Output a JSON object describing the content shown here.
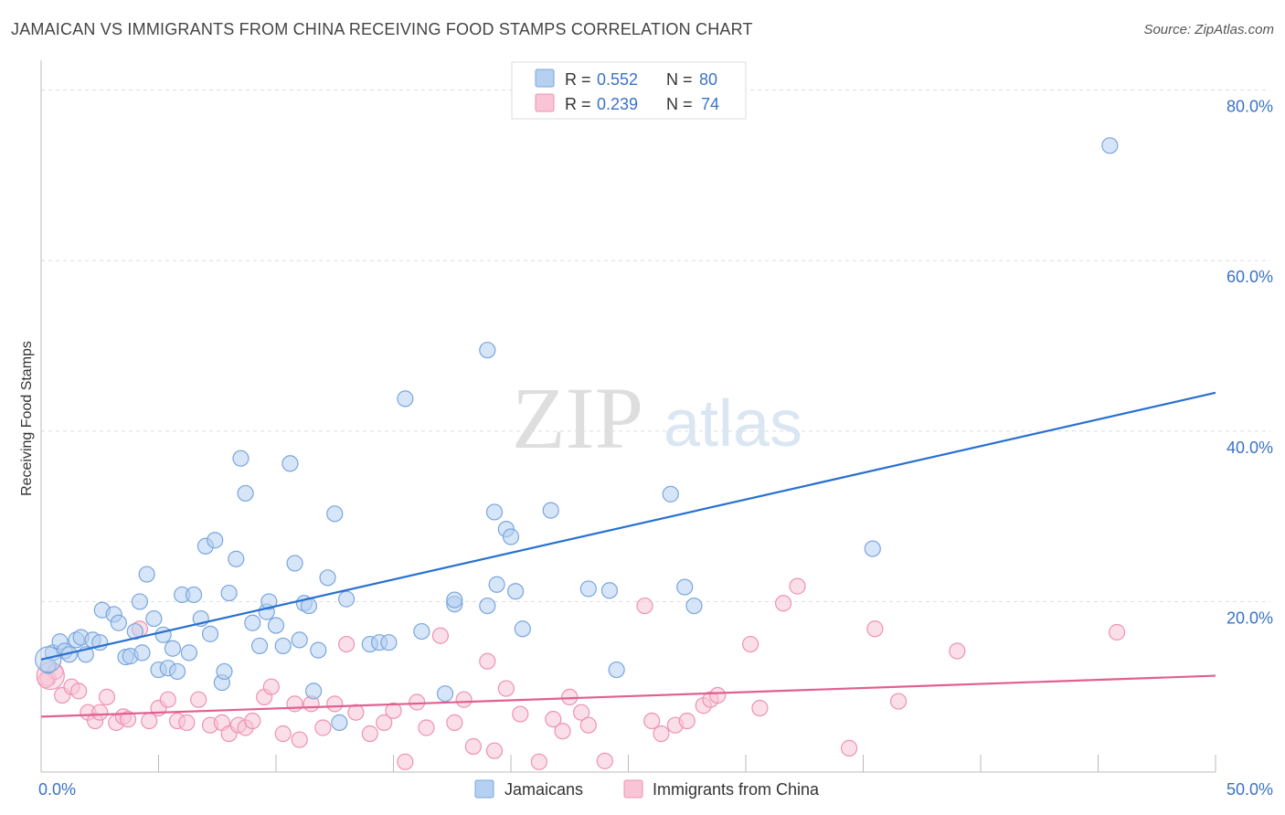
{
  "title": "JAMAICAN VS IMMIGRANTS FROM CHINA RECEIVING FOOD STAMPS CORRELATION CHART",
  "source": "Source: ZipAtlas.com",
  "watermark": {
    "zip": "ZIP",
    "atlas": "atlas"
  },
  "colors": {
    "blue_fill": "#b5d0f0",
    "blue_stroke": "#7aa6dd",
    "blue_line": "#2870d0",
    "pink_fill": "#f8c4d6",
    "pink_stroke": "#ee92b2",
    "pink_line": "#e06090",
    "axis_text": "#3a72c8",
    "grid": "#dddddd"
  },
  "legend": {
    "rows": [
      {
        "r_label": "R =",
        "r_value": "0.552",
        "n_label": "N =",
        "n_value": "80"
      },
      {
        "r_label": "R =",
        "r_value": "0.239",
        "n_label": "N =",
        "n_value": "74"
      }
    ]
  },
  "bottom_legend": [
    "Jamaicans",
    "Immigrants from China"
  ],
  "chart_data": {
    "type": "scatter",
    "title": "JAMAICAN VS IMMIGRANTS FROM CHINA RECEIVING FOOD STAMPS CORRELATION CHART",
    "xlabel": "",
    "ylabel": "Receiving Food Stamps",
    "xlim": [
      0,
      50
    ],
    "ylim": [
      0,
      82
    ],
    "x_tick_labels": [
      "0.0%",
      "50.0%"
    ],
    "y_ticks": [
      20,
      40,
      60,
      80
    ],
    "y_tick_labels": [
      "20.0%",
      "40.0%",
      "60.0%",
      "80.0%"
    ],
    "grid": true,
    "series": [
      {
        "name": "Jamaicans",
        "R": 0.552,
        "N": 80,
        "trend": [
          [
            0,
            13.2
          ],
          [
            50,
            44.5
          ]
        ],
        "points": [
          [
            0.3,
            12.5
          ],
          [
            0.5,
            14
          ],
          [
            0.8,
            15.3
          ],
          [
            1,
            14.2
          ],
          [
            1.2,
            13.8
          ],
          [
            1.5,
            15.5
          ],
          [
            1.7,
            15.8
          ],
          [
            1.9,
            13.8
          ],
          [
            2.2,
            15.5
          ],
          [
            2.5,
            15.2
          ],
          [
            2.6,
            19
          ],
          [
            3.1,
            18.5
          ],
          [
            3.3,
            17.5
          ],
          [
            3.6,
            13.5
          ],
          [
            3.8,
            13.6
          ],
          [
            4,
            16.5
          ],
          [
            4.3,
            14
          ],
          [
            4.2,
            20
          ],
          [
            4.5,
            23.2
          ],
          [
            4.8,
            18
          ],
          [
            5,
            12
          ],
          [
            5.2,
            16.1
          ],
          [
            5.4,
            12.2
          ],
          [
            5.6,
            14.5
          ],
          [
            5.8,
            11.8
          ],
          [
            6,
            20.8
          ],
          [
            6.3,
            14
          ],
          [
            6.5,
            20.8
          ],
          [
            6.8,
            18
          ],
          [
            7,
            26.5
          ],
          [
            7.2,
            16.2
          ],
          [
            7.4,
            27.2
          ],
          [
            7.7,
            10.5
          ],
          [
            7.8,
            11.8
          ],
          [
            8,
            21
          ],
          [
            8.3,
            25
          ],
          [
            8.5,
            36.8
          ],
          [
            8.7,
            32.7
          ],
          [
            9,
            17.5
          ],
          [
            9.3,
            14.8
          ],
          [
            9.6,
            18.8
          ],
          [
            9.7,
            20
          ],
          [
            10,
            17.2
          ],
          [
            10.3,
            14.8
          ],
          [
            10.6,
            36.2
          ],
          [
            10.8,
            24.5
          ],
          [
            11,
            15.5
          ],
          [
            11.2,
            19.8
          ],
          [
            11.4,
            19.5
          ],
          [
            11.6,
            9.5
          ],
          [
            11.8,
            14.3
          ],
          [
            12.2,
            22.8
          ],
          [
            12.5,
            30.3
          ],
          [
            12.7,
            5.8
          ],
          [
            13,
            20.3
          ],
          [
            14,
            15
          ],
          [
            14.4,
            15.2
          ],
          [
            14.8,
            15.2
          ],
          [
            15.5,
            43.8
          ],
          [
            16.2,
            16.5
          ],
          [
            17.2,
            9.2
          ],
          [
            17.6,
            19.7
          ],
          [
            17.6,
            20.2
          ],
          [
            19,
            19.5
          ],
          [
            19,
            49.5
          ],
          [
            19.3,
            30.5
          ],
          [
            19.4,
            22
          ],
          [
            19.8,
            28.5
          ],
          [
            20,
            27.6
          ],
          [
            20.2,
            21.2
          ],
          [
            20.5,
            16.8
          ],
          [
            21.7,
            30.7
          ],
          [
            23.3,
            21.5
          ],
          [
            24.2,
            21.3
          ],
          [
            24.5,
            12
          ],
          [
            26.8,
            32.6
          ],
          [
            27.4,
            21.7
          ],
          [
            27.8,
            19.5
          ],
          [
            35.4,
            26.2
          ],
          [
            45.5,
            73.5
          ]
        ]
      },
      {
        "name": "Immigrants from China",
        "R": 0.239,
        "N": 74,
        "trend": [
          [
            0,
            6.5
          ],
          [
            50,
            11.3
          ]
        ],
        "points": [
          [
            0.3,
            11
          ],
          [
            0.6,
            11.8
          ],
          [
            0.9,
            9
          ],
          [
            1.3,
            10
          ],
          [
            1.6,
            9.5
          ],
          [
            2,
            7
          ],
          [
            2.3,
            6
          ],
          [
            2.5,
            7
          ],
          [
            2.8,
            8.8
          ],
          [
            3.2,
            5.8
          ],
          [
            3.5,
            6.5
          ],
          [
            3.7,
            6.2
          ],
          [
            4.2,
            16.8
          ],
          [
            4.6,
            6
          ],
          [
            5,
            7.5
          ],
          [
            5.4,
            8.5
          ],
          [
            5.8,
            6
          ],
          [
            6.2,
            5.8
          ],
          [
            6.7,
            8.5
          ],
          [
            7.2,
            5.5
          ],
          [
            7.7,
            5.8
          ],
          [
            8,
            4.5
          ],
          [
            8.4,
            5.5
          ],
          [
            8.7,
            5.2
          ],
          [
            9,
            6
          ],
          [
            9.5,
            8.8
          ],
          [
            9.8,
            10
          ],
          [
            10.3,
            4.5
          ],
          [
            10.8,
            8
          ],
          [
            11,
            3.8
          ],
          [
            11.5,
            8
          ],
          [
            12,
            5.2
          ],
          [
            12.5,
            8
          ],
          [
            13,
            15
          ],
          [
            13.4,
            7
          ],
          [
            14,
            4.5
          ],
          [
            14.6,
            5.8
          ],
          [
            15,
            7.2
          ],
          [
            15.5,
            1.2
          ],
          [
            16,
            8.2
          ],
          [
            16.4,
            5.2
          ],
          [
            17,
            16
          ],
          [
            17.6,
            5.8
          ],
          [
            18,
            8.5
          ],
          [
            18.4,
            3
          ],
          [
            19,
            13
          ],
          [
            19.3,
            2.5
          ],
          [
            19.8,
            9.8
          ],
          [
            20.4,
            6.8
          ],
          [
            21.2,
            1.2
          ],
          [
            21.8,
            6.2
          ],
          [
            22.2,
            4.8
          ],
          [
            22.5,
            8.8
          ],
          [
            23,
            7
          ],
          [
            23.3,
            5.5
          ],
          [
            24,
            1.3
          ],
          [
            25.7,
            19.5
          ],
          [
            26,
            6
          ],
          [
            26.4,
            4.5
          ],
          [
            27,
            5.5
          ],
          [
            27.5,
            6
          ],
          [
            28.2,
            7.8
          ],
          [
            28.5,
            8.5
          ],
          [
            28.8,
            9
          ],
          [
            30.2,
            15
          ],
          [
            30.6,
            7.5
          ],
          [
            31.6,
            19.8
          ],
          [
            32.2,
            21.8
          ],
          [
            34.4,
            2.8
          ],
          [
            35.5,
            16.8
          ],
          [
            36.5,
            8.3
          ],
          [
            39,
            14.2
          ],
          [
            45.8,
            16.4
          ],
          [
            0.2,
            10.8
          ]
        ]
      }
    ]
  }
}
